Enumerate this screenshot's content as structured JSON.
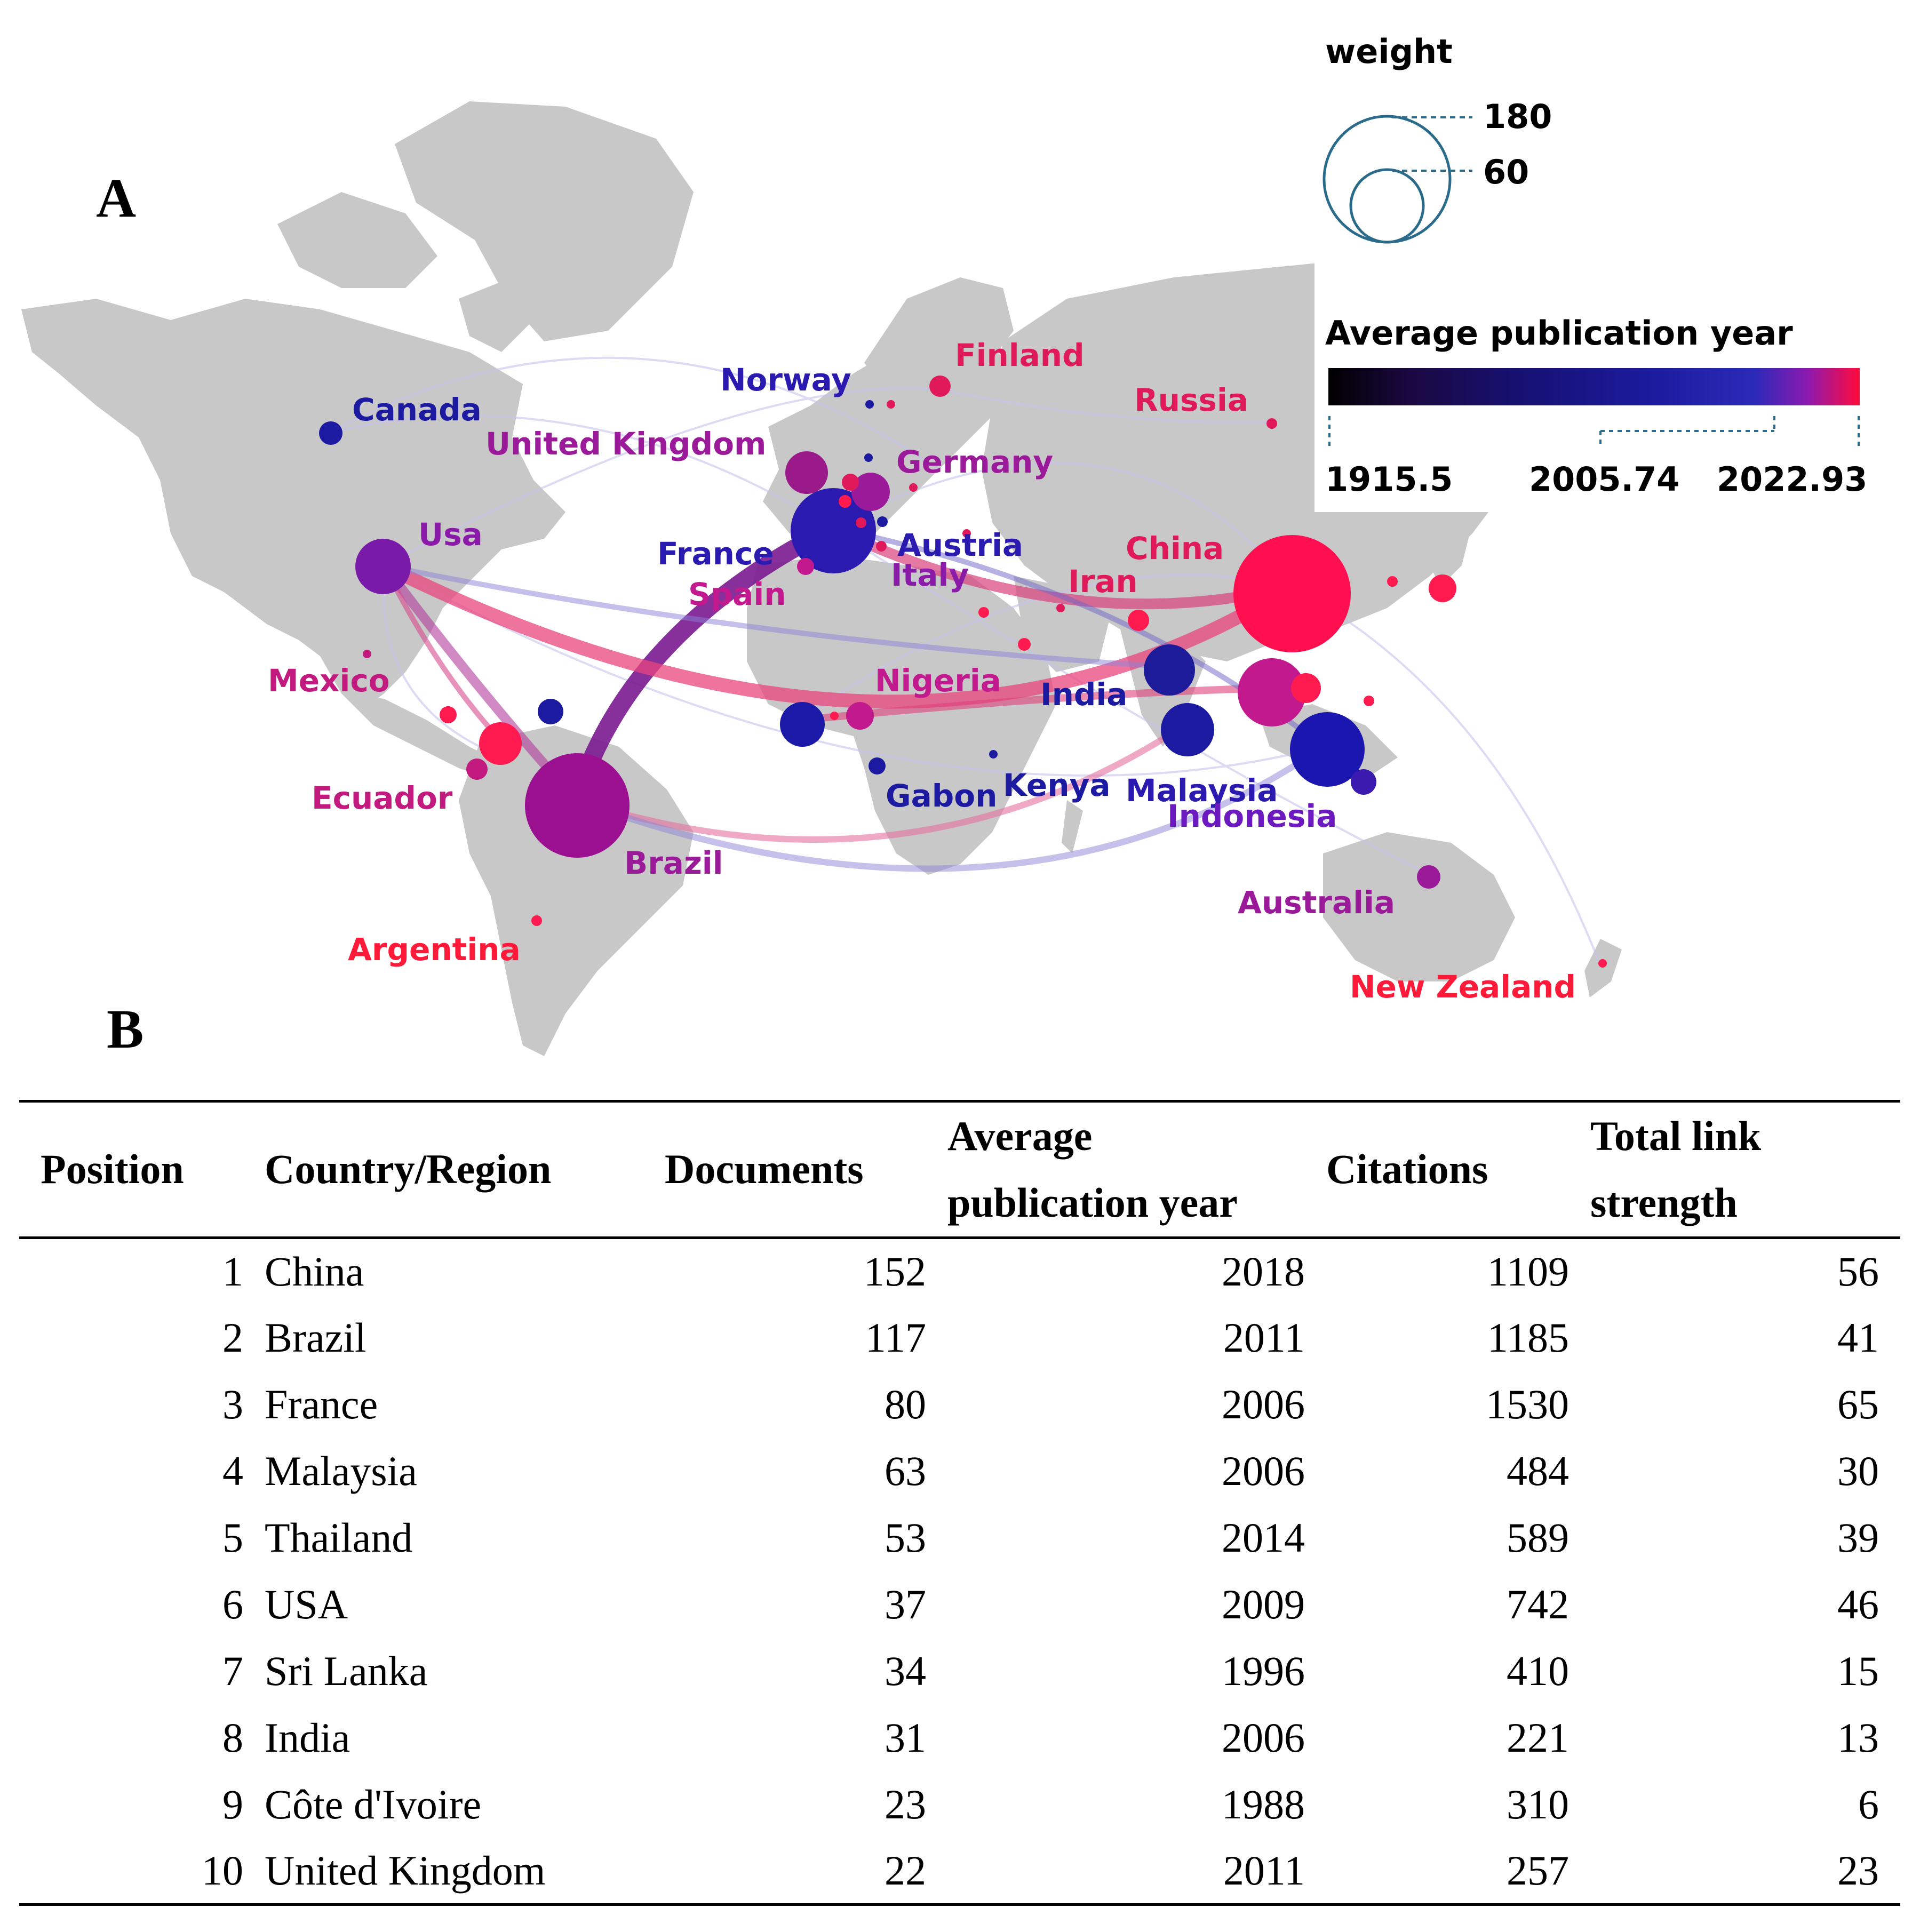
{
  "panel_a_label": "A",
  "panel_b_label": "B",
  "legend": {
    "weight_title": "weight",
    "weight_large": "180",
    "weight_small": "60",
    "color_title": "Average publication year",
    "color_min": "1915.5",
    "color_mid": "2005.74",
    "color_max": "2022.93",
    "colors": [
      "#000000",
      "#1a0a5e",
      "#1b1696",
      "#2a1fb0",
      "#6c1ec0",
      "#c21b8e",
      "#ff0a3c"
    ]
  },
  "map_labels": {
    "canada": "Canada",
    "united_kingdom": "United Kingdom",
    "norway": "Norway",
    "finland": "Finland",
    "russia": "Russia",
    "germany": "Germany",
    "usa": "Usa",
    "france": "France",
    "austria": "Austria",
    "italy": "Italy",
    "spain": "Spain",
    "china": "China",
    "iran": "Iran",
    "mexico": "Mexico",
    "nigeria": "Nigeria",
    "india": "India",
    "ecuador": "Ecuador",
    "gabon": "Gabon",
    "kenya": "Kenya",
    "malaysia": "Malaysia",
    "indonesia": "Indonesia",
    "brazil": "Brazil",
    "australia": "Australia",
    "argentina": "Argentina",
    "new_zealand": "New Zealand"
  },
  "map_colors": {
    "blue": "#1c1a9e",
    "indigo": "#3b1ba8",
    "purple": "#8a1a9a",
    "magenta": "#c21877",
    "pink": "#e0145a",
    "red": "#ff0a3c",
    "land": "#c8c8c8"
  },
  "table": {
    "headers": {
      "position": "Position",
      "country": "Country/Region",
      "documents": "Documents",
      "avg_year_line1": "Average",
      "avg_year_line2": "publication year",
      "citations": "Citations",
      "tls_line1": "Total link",
      "tls_line2": "strength"
    },
    "rows": [
      {
        "position": "1",
        "country": "China",
        "documents": "152",
        "avg_year": "2018",
        "citations": "1109",
        "tls": "56"
      },
      {
        "position": "2",
        "country": "Brazil",
        "documents": "117",
        "avg_year": "2011",
        "citations": "1185",
        "tls": "41"
      },
      {
        "position": "3",
        "country": "France",
        "documents": "80",
        "avg_year": "2006",
        "citations": "1530",
        "tls": "65"
      },
      {
        "position": "4",
        "country": "Malaysia",
        "documents": "63",
        "avg_year": "2006",
        "citations": "484",
        "tls": "30"
      },
      {
        "position": "5",
        "country": "Thailand",
        "documents": "53",
        "avg_year": "2014",
        "citations": "589",
        "tls": "39"
      },
      {
        "position": "6",
        "country": "USA",
        "documents": "37",
        "avg_year": "2009",
        "citations": "742",
        "tls": "46"
      },
      {
        "position": "7",
        "country": "Sri Lanka",
        "documents": "34",
        "avg_year": "1996",
        "citations": "410",
        "tls": "15"
      },
      {
        "position": "8",
        "country": "India",
        "documents": "31",
        "avg_year": "2006",
        "citations": "221",
        "tls": "13"
      },
      {
        "position": "9",
        "country": "Côte d'Ivoire",
        "documents": "23",
        "avg_year": "1988",
        "citations": "310",
        "tls": "6"
      },
      {
        "position": "10",
        "country": "United Kingdom",
        "documents": "22",
        "avg_year": "2011",
        "citations": "257",
        "tls": "23"
      }
    ]
  }
}
